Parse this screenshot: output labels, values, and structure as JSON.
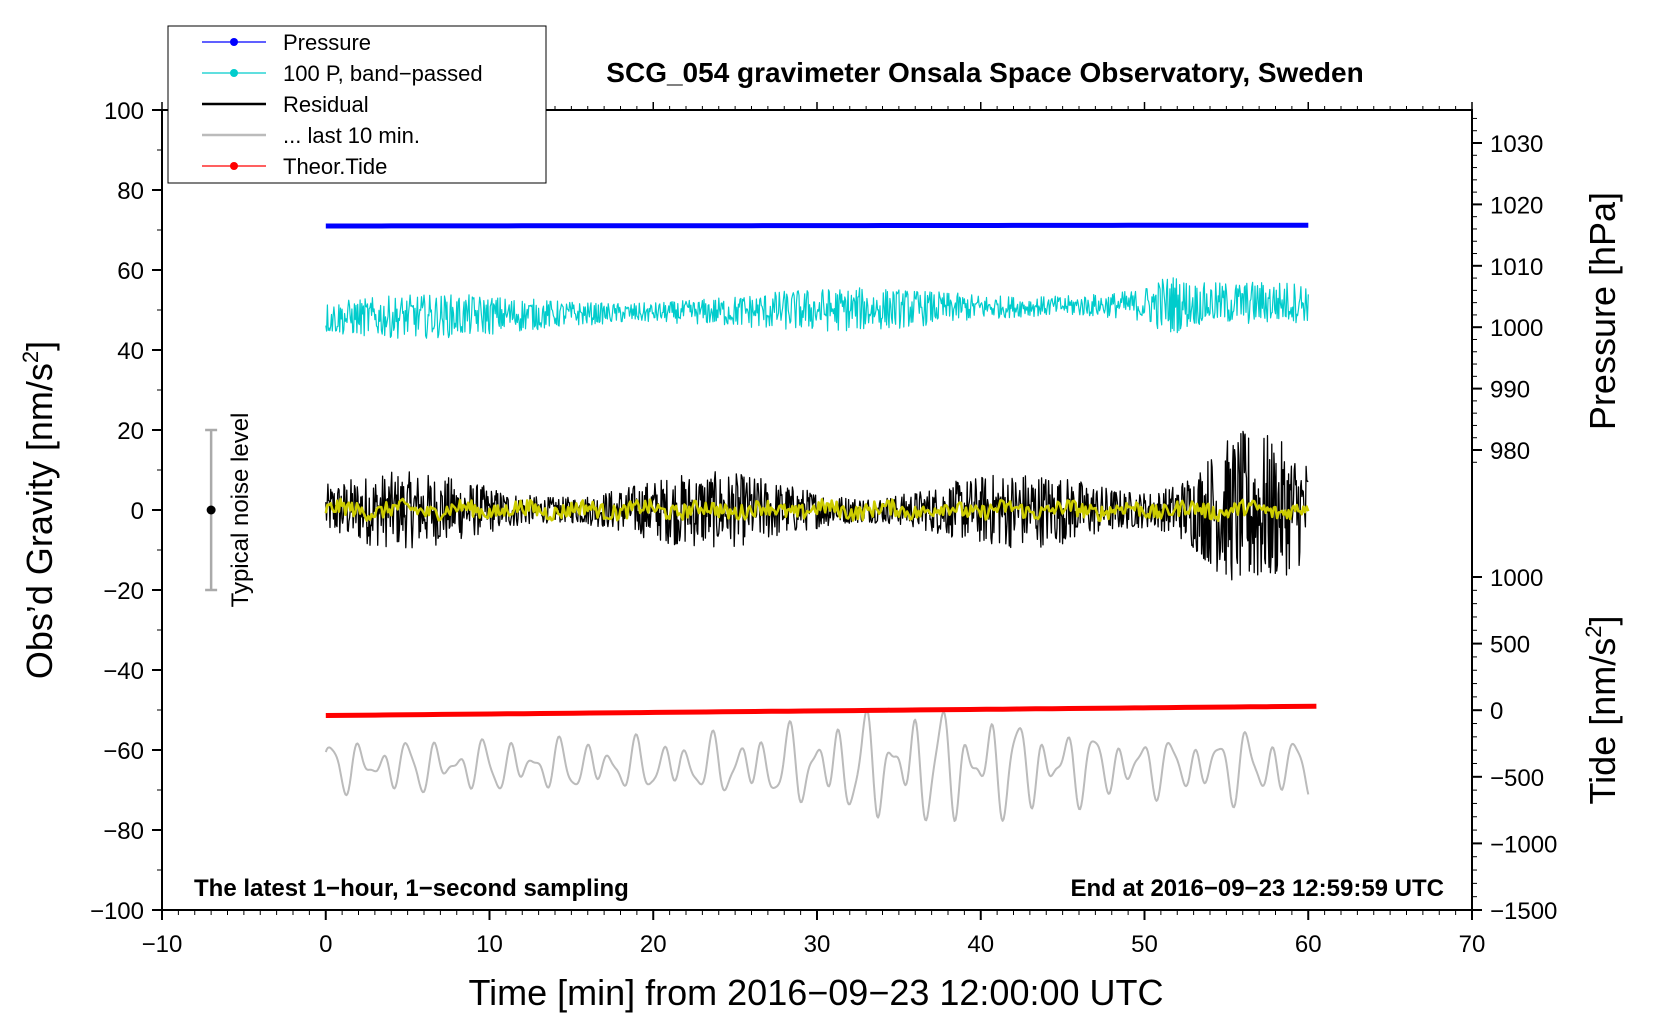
{
  "chart_data": {
    "type": "line",
    "title": "SCG_054 gravimeter Onsala Space Observatory, Sweden",
    "xlabel": "Time [min] from 2016−09−23 12:00:00 UTC",
    "ylabel_left_main": "Obs’d Gravity [nm/s",
    "ylabel_left_sup": "2",
    "ylabel_left_end": "]",
    "ylabel_right_pressure": "Pressure [hPa]",
    "ylabel_right_tide_main": "Tide [nm/s",
    "ylabel_right_tide_sup": "2",
    "ylabel_right_tide_end": "]",
    "xlim": [
      -10,
      70
    ],
    "ylim": [
      -100,
      100
    ],
    "pressure_axis_range": [
      970,
      1035
    ],
    "tide_axis_range": [
      -1500,
      1000
    ],
    "x_ticks": [
      -10,
      0,
      10,
      20,
      30,
      40,
      50,
      60,
      70
    ],
    "x_tick_labels": [
      "−10",
      "0",
      "10",
      "20",
      "30",
      "40",
      "50",
      "60",
      "70"
    ],
    "y_ticks": [
      -100,
      -80,
      -60,
      -40,
      -20,
      0,
      20,
      40,
      60,
      80,
      100
    ],
    "y_tick_labels": [
      "−100",
      "−80",
      "−60",
      "−40",
      "−20",
      "0",
      "20",
      "40",
      "60",
      "80",
      "100"
    ],
    "pressure_ticks": [
      980,
      990,
      1000,
      1010,
      1020,
      1030
    ],
    "pressure_tick_labels": [
      "980",
      "990",
      "1000",
      "1010",
      "1020",
      "1030"
    ],
    "tide_ticks": [
      -1500,
      -1000,
      -500,
      0,
      500,
      1000
    ],
    "tide_tick_labels": [
      "−1500",
      "−1000",
      "−500",
      "0",
      "500",
      "1000"
    ],
    "legend": [
      {
        "label": "Pressure",
        "color": "#0000ff",
        "marker": true
      },
      {
        "label": "100 P, band−passed",
        "color": "#00cccc",
        "marker": true
      },
      {
        "label": "Residual",
        "color": "#000000",
        "marker": false
      },
      {
        "label": "... last 10 min.",
        "color": "#bbbbbb",
        "marker": false
      },
      {
        "label": "Theor.Tide",
        "color": "#ff0000",
        "marker": true
      }
    ],
    "series": [
      {
        "name": "Pressure",
        "axis": "pressure",
        "color": "#0000ff",
        "x_range": [
          0,
          60
        ],
        "values_start": 1016.0,
        "values_end": 1016.1,
        "display_offset_nm_s2": 71
      },
      {
        "name": "100 P, band-passed",
        "axis": "gravity",
        "color": "#00cccc",
        "x_range": [
          0,
          60
        ],
        "center": 48,
        "center_end": 52,
        "amplitude": 5
      },
      {
        "name": "Residual",
        "axis": "gravity",
        "color": "#000000",
        "x_range": [
          0,
          60
        ],
        "center": 0,
        "amplitude": 8,
        "amplitude_end_max": 22
      },
      {
        "name": "Residual smoothed",
        "axis": "gravity",
        "color": "#cccc00",
        "x_range": [
          0,
          60
        ],
        "center": 0,
        "amplitude": 2
      },
      {
        "name": "... last 10 min.",
        "axis": "gravity",
        "color": "#bbbbbb",
        "x_range": [
          0,
          60
        ],
        "center": -64,
        "amplitude": 14
      },
      {
        "name": "Theor.Tide",
        "axis": "tide",
        "color": "#ff0000",
        "x_range": [
          0,
          60.5
        ],
        "values_start": -40,
        "values_end": 30
      }
    ],
    "noise_bar": {
      "label": "Typical noise level",
      "x": -7,
      "center": 0,
      "low": -20,
      "high": 20
    },
    "note_left": "The latest 1−hour, 1−second sampling",
    "note_right": "End at 2016−09−23 12:59:59 UTC"
  }
}
